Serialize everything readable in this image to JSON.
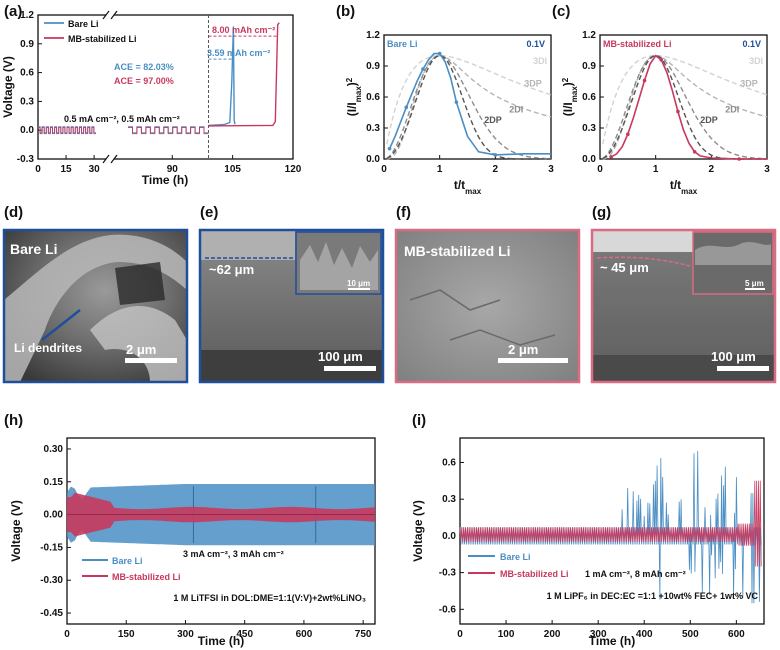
{
  "colors": {
    "bare": "#4a8ec4",
    "mb": "#c8385e",
    "blue_frame": "#1f4e9c",
    "pink_frame": "#d96b82"
  },
  "panels": {
    "a": {
      "letter": "(a)"
    },
    "b": {
      "letter": "(b)"
    },
    "c": {
      "letter": "(c)"
    },
    "d": {
      "letter": "(d)",
      "label": "Bare Li",
      "annotation": "Li dendrites",
      "scale": "2 μm"
    },
    "e": {
      "letter": "(e)",
      "annotation": "~62 μm",
      "scale": "100 μm",
      "inset_scale": "10 μm"
    },
    "f": {
      "letter": "(f)",
      "label": "MB-stabilized Li",
      "scale": "2 μm"
    },
    "g": {
      "letter": "(g)",
      "annotation": "~ 45 μm",
      "scale": "100 μm",
      "inset_scale": "5 μm"
    },
    "h": {
      "letter": "(h)"
    },
    "i": {
      "letter": "(i)"
    }
  },
  "chart_data": [
    {
      "id": "a",
      "type": "line",
      "xlabel": "Time (h)",
      "ylabel": "Voltage (V)",
      "xlim": [
        0,
        120
      ],
      "ylim": [
        -0.3,
        1.2
      ],
      "x_ticks": [
        0,
        15,
        30,
        90,
        105,
        120
      ],
      "y_ticks": [
        -0.3,
        0.0,
        0.3,
        0.6,
        0.9,
        1.2
      ],
      "axis_break_x": [
        31,
        79
      ],
      "vline_x": 99,
      "series": [
        {
          "name": "Bare Li"
        },
        {
          "name": "MB-stabilized Li"
        }
      ],
      "annotations": {
        "ace_bare": "ACE = 82.03%",
        "ace_mb": "ACE = 97.00%",
        "condition": "0.5 mA cm⁻², 0.5 mAh cm⁻²",
        "cap_mb": "8.00 mAh cm⁻²",
        "cap_bare": "3.59 mAh cm⁻²"
      }
    },
    {
      "id": "b",
      "type": "line",
      "title": "Bare Li",
      "condition": "0.1V",
      "xlabel": "t/t",
      "xlabel_sub": "max",
      "ylabel": "(I/I",
      "ylabel_sub": "max",
      "ylabel_tail": ")",
      "ylabel_sup": "2",
      "xlim": [
        0,
        3
      ],
      "ylim": [
        0,
        1.2
      ],
      "x_ticks": [
        0,
        1,
        2,
        3
      ],
      "y_ticks": [
        0.0,
        0.3,
        0.6,
        0.9,
        1.2
      ],
      "models": [
        "3DI",
        "3DP",
        "2DI",
        "2DP"
      ],
      "data_x": [
        0.1,
        0.2,
        0.3,
        0.4,
        0.5,
        0.6,
        0.7,
        0.8,
        0.9,
        1.0,
        1.1,
        1.2,
        1.3,
        1.5,
        1.7,
        2.0,
        2.5,
        3.0
      ],
      "data_y": [
        0.1,
        0.22,
        0.36,
        0.5,
        0.63,
        0.76,
        0.87,
        0.96,
        1.02,
        1.02,
        0.94,
        0.78,
        0.55,
        0.22,
        0.07,
        0.04,
        0.05,
        0.05
      ]
    },
    {
      "id": "c",
      "type": "line",
      "title": "MB-stabilized Li",
      "condition": "0.1V",
      "xlabel": "t/t",
      "xlabel_sub": "max",
      "ylabel": "(I/I",
      "ylabel_sub": "max",
      "ylabel_tail": ")",
      "ylabel_sup": "2",
      "xlim": [
        0,
        3
      ],
      "ylim": [
        0,
        1.2
      ],
      "x_ticks": [
        0,
        1,
        2,
        3
      ],
      "y_ticks": [
        0.0,
        0.3,
        0.6,
        0.9,
        1.2
      ],
      "models": [
        "3DI",
        "3DP",
        "2DI",
        "2DP"
      ],
      "data_x": [
        0.2,
        0.3,
        0.4,
        0.5,
        0.6,
        0.7,
        0.8,
        0.9,
        1.0,
        1.1,
        1.2,
        1.3,
        1.4,
        1.5,
        1.6,
        1.7,
        1.8,
        2.0,
        2.5,
        3.0
      ],
      "data_y": [
        0.02,
        0.05,
        0.12,
        0.24,
        0.4,
        0.58,
        0.76,
        0.92,
        1.0,
        0.96,
        0.84,
        0.66,
        0.46,
        0.28,
        0.15,
        0.07,
        0.03,
        0.01,
        0.0,
        0.0
      ]
    },
    {
      "id": "h",
      "type": "line",
      "xlabel": "Time (h)",
      "ylabel": "Voltage (V)",
      "xlim": [
        0,
        780
      ],
      "ylim": [
        -0.5,
        0.35
      ],
      "x_ticks": [
        0,
        150,
        300,
        450,
        600,
        750
      ],
      "y_ticks": [
        -0.45,
        -0.3,
        -0.15,
        0.0,
        0.15,
        0.3
      ],
      "series": [
        {
          "name": "Bare Li"
        },
        {
          "name": "MB-stabilized Li"
        }
      ],
      "condition": "3 mA cm⁻², 3 mAh cm⁻²",
      "electrolyte": "1 M LiTFSI in DOL:DME=1:1(V:V)+2wt%LiNO₃"
    },
    {
      "id": "i",
      "type": "line",
      "xlabel": "Time (h)",
      "ylabel": "Voltage (V)",
      "xlim": [
        0,
        660
      ],
      "ylim": [
        -0.72,
        0.8
      ],
      "x_ticks": [
        0,
        100,
        200,
        300,
        400,
        500,
        600
      ],
      "y_ticks": [
        -0.6,
        -0.3,
        0.0,
        0.3,
        0.6
      ],
      "series": [
        {
          "name": "Bare Li"
        },
        {
          "name": "MB-stabilized Li"
        }
      ],
      "condition": "1 mA cm⁻², 8 mAh cm⁻²",
      "electrolyte": "1 M LiPF₆ in DEC:EC =1:1 +10wt% FEC+ 1wt% VC"
    }
  ]
}
